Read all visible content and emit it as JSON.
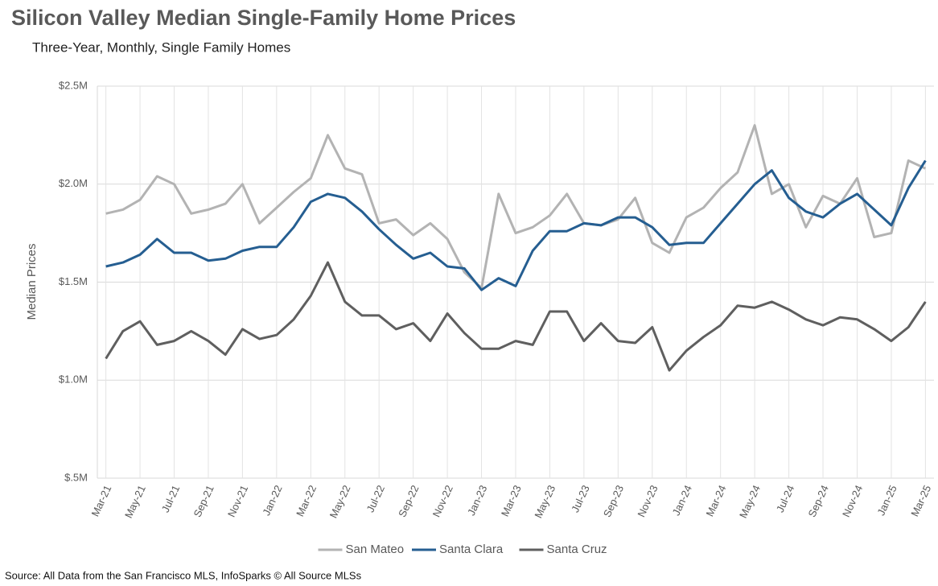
{
  "chart_data": {
    "type": "line",
    "title": "Silicon Valley Median Single-Family Home Prices",
    "subtitle": "Three-Year, Monthly, Single Family Homes",
    "y_label": "Median Prices",
    "source": "Source: All Data from the San Francisco MLS, InfoSparks © All Source MLSs",
    "categories": [
      "Mar-21",
      null,
      "May-21",
      null,
      "Jul-21",
      null,
      "Sep-21",
      null,
      "Nov-21",
      null,
      "Jan-22",
      null,
      "Mar-22",
      null,
      "May-22",
      null,
      "Jul-22",
      null,
      "Sep-22",
      null,
      "Nov-22",
      null,
      "Jan-23",
      null,
      "Mar-23",
      null,
      "May-23",
      null,
      "Jul-23",
      null,
      "Sep-23",
      null,
      "Nov-23",
      null,
      "Jan-24",
      null,
      "Mar-24",
      null,
      "May-24",
      null,
      "Jul-24",
      null,
      "Sep-24",
      null,
      "Nov-24",
      null,
      "Jan-25",
      null,
      "Mar-25"
    ],
    "series": [
      {
        "name": "San Mateo",
        "color": "#b3b3b3",
        "values": [
          1850000,
          1870000,
          1920000,
          2040000,
          2000000,
          1850000,
          1870000,
          1900000,
          2000000,
          1800000,
          1880000,
          1960000,
          2030000,
          2250000,
          2080000,
          2050000,
          1800000,
          1820000,
          1740000,
          1800000,
          1720000,
          1550000,
          1470000,
          1950000,
          1750000,
          1780000,
          1840000,
          1950000,
          1800000,
          1790000,
          1820000,
          1930000,
          1700000,
          1650000,
          1830000,
          1880000,
          1980000,
          2060000,
          2300000,
          1950000,
          2000000,
          1780000,
          1940000,
          1900000,
          2030000,
          1730000,
          1750000,
          2120000,
          2080000
        ]
      },
      {
        "name": "Santa Clara",
        "color": "#255e91",
        "values": [
          1580000,
          1600000,
          1640000,
          1720000,
          1650000,
          1650000,
          1610000,
          1620000,
          1660000,
          1680000,
          1680000,
          1780000,
          1910000,
          1950000,
          1930000,
          1860000,
          1770000,
          1690000,
          1620000,
          1650000,
          1580000,
          1570000,
          1460000,
          1520000,
          1480000,
          1660000,
          1760000,
          1760000,
          1800000,
          1790000,
          1830000,
          1830000,
          1780000,
          1690000,
          1700000,
          1700000,
          1800000,
          1900000,
          2000000,
          2070000,
          1930000,
          1860000,
          1830000,
          1900000,
          1950000,
          1870000,
          1790000,
          1980000,
          2120000
        ]
      },
      {
        "name": "Santa Cruz",
        "color": "#5f5f5f",
        "values": [
          1110000,
          1250000,
          1300000,
          1180000,
          1200000,
          1250000,
          1200000,
          1130000,
          1260000,
          1210000,
          1230000,
          1310000,
          1430000,
          1600000,
          1400000,
          1330000,
          1330000,
          1260000,
          1290000,
          1200000,
          1340000,
          1240000,
          1160000,
          1160000,
          1200000,
          1180000,
          1350000,
          1350000,
          1200000,
          1290000,
          1200000,
          1190000,
          1270000,
          1050000,
          1150000,
          1220000,
          1280000,
          1380000,
          1370000,
          1400000,
          1360000,
          1310000,
          1280000,
          1320000,
          1310000,
          1260000,
          1200000,
          1270000,
          1400000
        ]
      }
    ],
    "ylim": [
      500000,
      2500000
    ],
    "yticks": [
      {
        "value": 500000,
        "label": "$.5M"
      },
      {
        "value": 1000000,
        "label": "$1.0M"
      },
      {
        "value": 1500000,
        "label": "$1.5M"
      },
      {
        "value": 2000000,
        "label": "$2.0M"
      },
      {
        "value": 2500000,
        "label": "$2.5M"
      }
    ],
    "grid": true,
    "legend": "bottom"
  }
}
